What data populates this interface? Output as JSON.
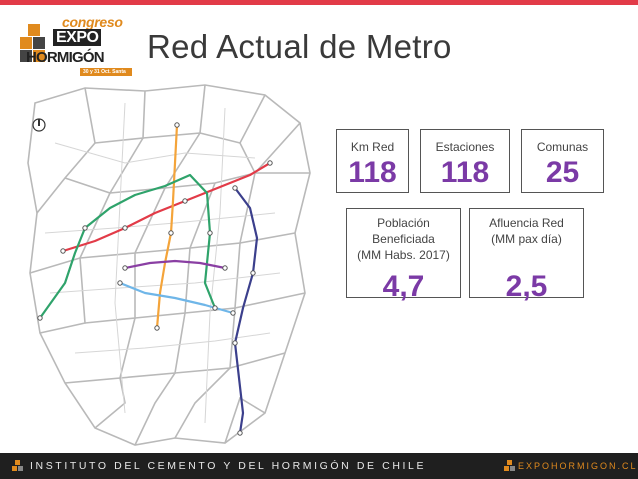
{
  "header": {
    "accent_color": "#e23b48",
    "title": "Red Actual de Metro"
  },
  "logo": {
    "line1": "congreso",
    "line2": "EXPO",
    "line3": "HORMIGÓN",
    "line4": "30 y 31 Oct. Santa Cruz"
  },
  "map": {
    "icon": "compass-icon",
    "line_colors": {
      "linea_1": "#e23b48",
      "linea_2": "#f4a43a",
      "linea_4": "#3b3f8c",
      "linea_4a": "#6fb6e8",
      "linea_5": "#2fa36b",
      "linea_6": "#8a3fa3"
    }
  },
  "stats": {
    "km_red": {
      "label": "Km Red",
      "value": "118"
    },
    "estaciones": {
      "label": "Estaciones",
      "value": "118"
    },
    "comunas": {
      "label": "Comunas",
      "value": "25"
    },
    "poblacion": {
      "label_line1": "Población",
      "label_line2": "Beneficiada",
      "label_line3": "(MM Habs. 2017)",
      "value": "4,7"
    },
    "afluencia": {
      "label_line1": "Afluencia Red",
      "label_line2": "(MM pax día)",
      "value": "2,5"
    },
    "value_color": "#7b3aa6"
  },
  "footer": {
    "left_text": "INSTITUTO DEL CEMENTO Y DEL HORMIGÓN DE CHILE",
    "right_text": "EXPOHORMIGON.CL",
    "accent": "#e08a1e"
  }
}
